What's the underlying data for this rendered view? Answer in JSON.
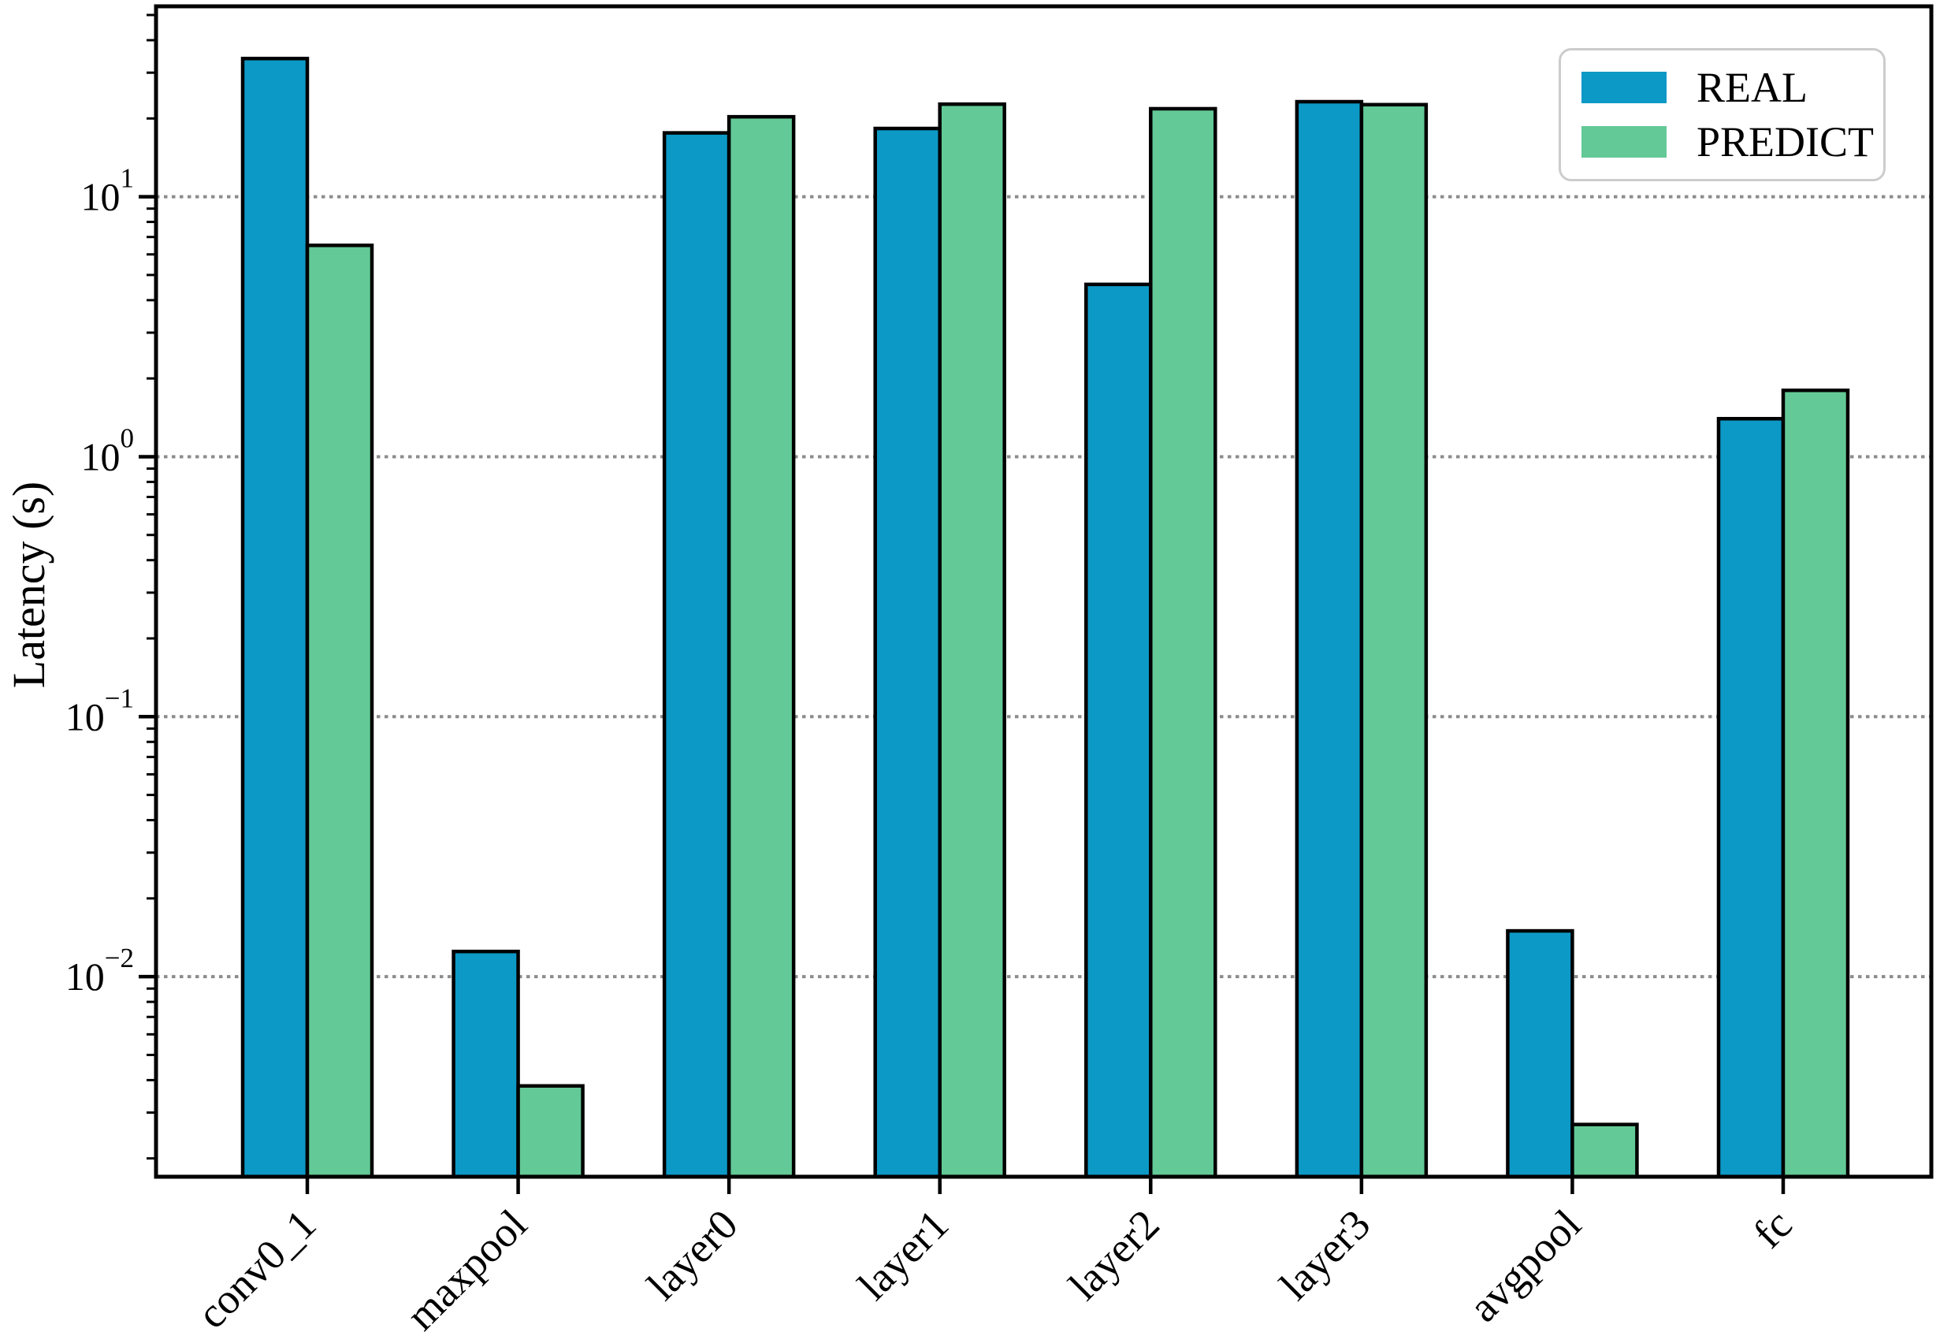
{
  "figure": {
    "background": "#ffffff",
    "ylabel": "Latency (s)"
  },
  "legend": {
    "position": "upper right",
    "items": [
      {
        "label": "REAL",
        "color": "#0c99c6"
      },
      {
        "label": "PREDICT",
        "color": "#63c996"
      }
    ]
  },
  "chart_data": {
    "type": "bar",
    "title": "",
    "xlabel": "",
    "ylabel": "Latency (s)",
    "yscale": "log",
    "ylim": [
      0.0017,
      54
    ],
    "categories": [
      "conv0_1",
      "maxpool",
      "layer0",
      "layer1",
      "layer2",
      "layer3",
      "avgpool",
      "fc"
    ],
    "series": [
      {
        "name": "REAL",
        "color": "#0c99c6",
        "values": [
          34,
          0.0125,
          17.6,
          18.3,
          4.6,
          23.2,
          0.015,
          1.4
        ]
      },
      {
        "name": "PREDICT",
        "color": "#63c996",
        "values": [
          6.5,
          0.0038,
          20.3,
          22.7,
          21.8,
          22.6,
          0.0027,
          1.8
        ]
      }
    ],
    "bar_edge_color": "#000000",
    "ytick_decades": [
      -2,
      -1,
      0,
      1
    ],
    "grid": {
      "axis": "y",
      "which": "major",
      "style": "dotted",
      "color": "#8c8c8c"
    },
    "legend_position": "upper right"
  }
}
